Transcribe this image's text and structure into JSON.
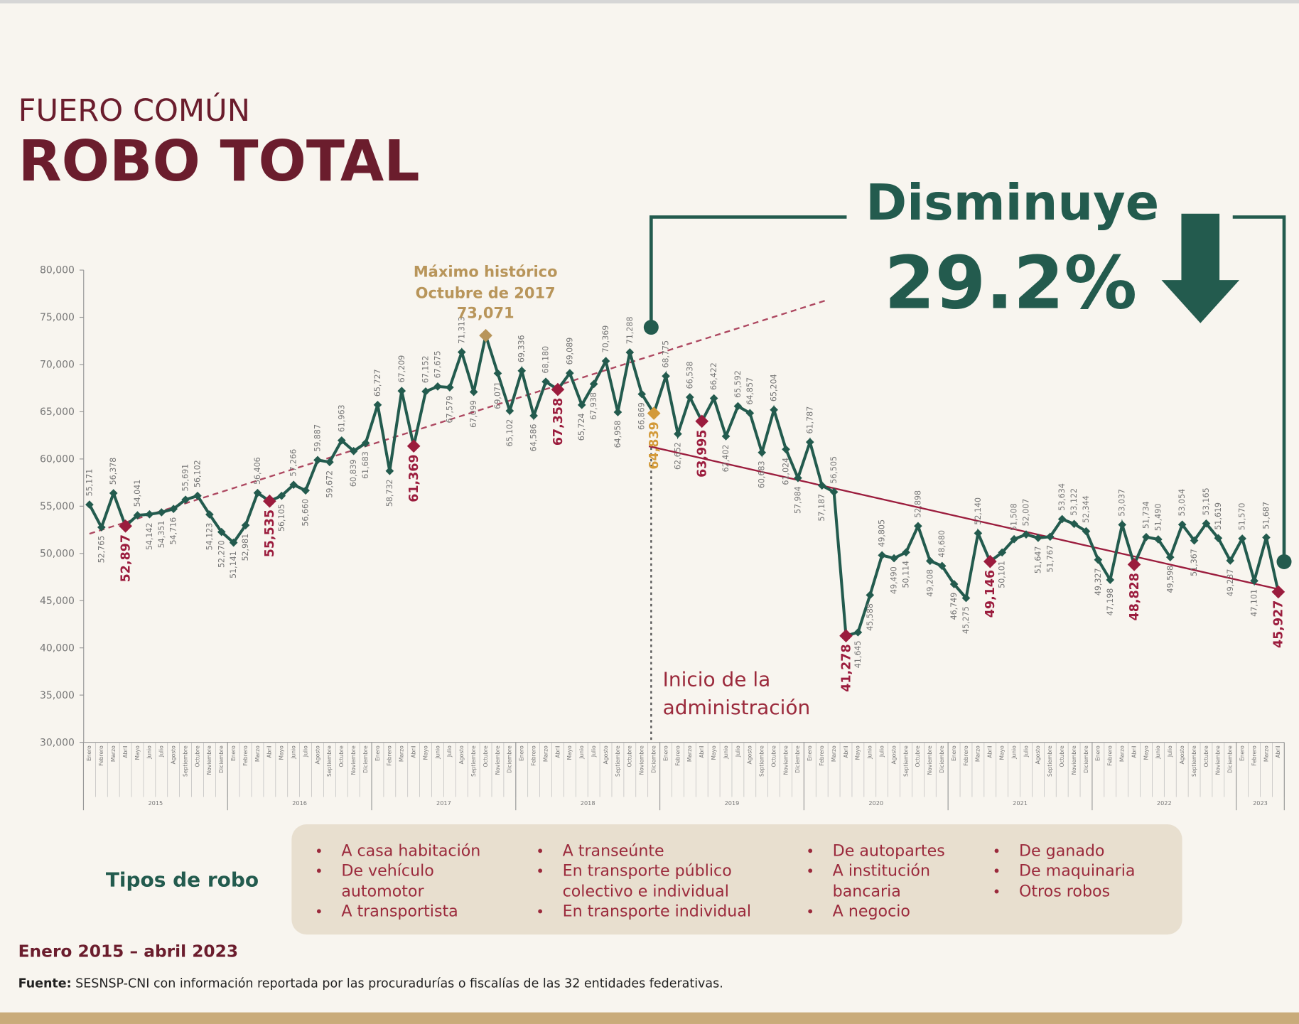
{
  "header": {
    "kicker": "FUERO COMÚN",
    "title": "ROBO TOTAL"
  },
  "callout": {
    "text": "Disminuye",
    "value": "29.2%"
  },
  "chart_data": {
    "type": "line",
    "annotation": [
      "Máximo histórico",
      "Octubre de 2017"
    ],
    "admin_note": [
      "Inicio de la",
      "administración"
    ],
    "categories": [
      "Enero",
      "Febrero",
      "Marzo",
      "Abril",
      "Mayo",
      "Junio",
      "Julio",
      "Agosto",
      "Septiembre",
      "Octubre",
      "Noviembre",
      "Diciembre",
      "Enero",
      "Febrero",
      "Marzo",
      "Abril",
      "Mayo",
      "Junio",
      "Julio",
      "Agosto",
      "Septiembre",
      "Octubre",
      "Noviembre",
      "Diciembre",
      "Enero",
      "Febrero",
      "Marzo",
      "Abril",
      "Mayo",
      "Junio",
      "Julio",
      "Agosto",
      "Septiembre",
      "Octubre",
      "Noviembre",
      "Diciembre",
      "Enero",
      "Febrero",
      "Marzo",
      "Abril",
      "Mayo",
      "Junio",
      "Julio",
      "Agosto",
      "Septiembre",
      "Octubre",
      "Noviembre",
      "Diciembre",
      "Enero",
      "Febrero",
      "Marzo",
      "Abril",
      "Mayo",
      "Junio",
      "Julio",
      "Agosto",
      "Septiembre",
      "Octubre",
      "Noviembre",
      "Diciembre",
      "Enero",
      "Febrero",
      "Marzo",
      "Abril",
      "Mayo",
      "Junio",
      "Julio",
      "Agosto",
      "Septiembre",
      "Octubre",
      "Noviembre",
      "Diciembre",
      "Enero",
      "Febrero",
      "Marzo",
      "Abril",
      "Mayo",
      "Junio",
      "Julio",
      "Agosto",
      "Septiembre",
      "Octubre",
      "Noviembre",
      "Diciembre",
      "Enero",
      "Febrero",
      "Marzo",
      "Abril",
      "Mayo",
      "Junio",
      "Julio",
      "Agosto",
      "Septiembre",
      "Octubre",
      "Noviembre",
      "Diciembre",
      "Enero",
      "Febrero",
      "Marzo",
      "Abril"
    ],
    "years": [
      "2015",
      "2016",
      "2017",
      "2018",
      "2019",
      "2020",
      "2021",
      "2022",
      "2023"
    ],
    "series": [
      {
        "color": "#235b4e",
        "values": [
          55171,
          52765,
          56378,
          52897,
          54041,
          54142,
          54351,
          54716,
          55691,
          56102,
          54123,
          52270,
          51141,
          52981,
          56406,
          55535,
          56105,
          57266,
          56660,
          59887,
          59672,
          61963,
          60839,
          61683,
          65727,
          58732,
          67209,
          61369,
          67152,
          67675,
          67579,
          71313,
          67099,
          73071,
          69071,
          65102,
          69336,
          64586,
          68180,
          67358,
          69089,
          65724,
          67938,
          70369,
          64958,
          71288,
          66869,
          64839,
          68775,
          62652,
          66538,
          63995,
          66422,
          62402,
          65592,
          64857,
          60683,
          65204,
          61024,
          57984,
          61787,
          57187,
          56505,
          41278,
          41645,
          45588,
          49805,
          49490,
          50114,
          52898,
          49208,
          48680,
          46749,
          45275,
          52140,
          49146,
          50101,
          51508,
          52007,
          51647,
          51767,
          53634,
          53122,
          52344,
          49327,
          47198,
          53037,
          48828,
          51734,
          51490,
          49598,
          53054,
          51367,
          53165,
          51619,
          49237,
          51570,
          47101,
          51687,
          45927
        ],
        "value_labels": [
          "55,171",
          "52,765",
          "56,378",
          "52,897",
          "54,041",
          "54,142",
          "54,351",
          "54,716",
          "55,691",
          "56,102",
          "54,123",
          "52,270",
          "51,141",
          "52,981",
          "56,406",
          "55,535",
          "56,105",
          "57,266",
          "56,660",
          "59,887",
          "59,672",
          "61,963",
          "60,839",
          "61,683",
          "65,727",
          "58,732",
          "67,209",
          "61,369",
          "67,152",
          "67,675",
          "67,579",
          "71,313",
          "67,099",
          "73,071",
          "69,071",
          "65,102",
          "69,336",
          "64,586",
          "68,180",
          "67,358",
          "69,089",
          "65,724",
          "67,938",
          "70,369",
          "64,958",
          "71,288",
          "66,869",
          "64,839",
          "68,775",
          "62,652",
          "66,538",
          "63,995",
          "66,422",
          "62,402",
          "65,592",
          "64,857",
          "60,683",
          "65,204",
          "61,024",
          "57,984",
          "61,787",
          "57,187",
          "56,505",
          "41,278",
          "41,645",
          "45,588",
          "49,805",
          "49,490",
          "50,114",
          "52,898",
          "49,208",
          "48,680",
          "46,749",
          "45,275",
          "52,140",
          "49,146",
          "50,101",
          "51,508",
          "52,007",
          "51,647",
          "51,767",
          "53,634",
          "53,122",
          "52,344",
          "49,327",
          "47,198",
          "53,037",
          "48,828",
          "51,734",
          "51,490",
          "49,598",
          "53,054",
          "51,367",
          "53,165",
          "51,619",
          "49,237",
          "51,570",
          "47,101",
          "51,687",
          "45,927"
        ],
        "point_colors": [
          "#235b4e",
          "#235b4e",
          "#235b4e",
          "#9b1c3d",
          "#235b4e",
          "#235b4e",
          "#235b4e",
          "#235b4e",
          "#235b4e",
          "#235b4e",
          "#235b4e",
          "#235b4e",
          "#235b4e",
          "#235b4e",
          "#235b4e",
          "#9b1c3d",
          "#235b4e",
          "#235b4e",
          "#235b4e",
          "#235b4e",
          "#235b4e",
          "#235b4e",
          "#235b4e",
          "#235b4e",
          "#235b4e",
          "#235b4e",
          "#235b4e",
          "#9b1c3d",
          "#235b4e",
          "#235b4e",
          "#235b4e",
          "#235b4e",
          "#235b4e",
          "#b8955a",
          "#235b4e",
          "#235b4e",
          "#235b4e",
          "#235b4e",
          "#235b4e",
          "#9b1c3d",
          "#235b4e",
          "#235b4e",
          "#235b4e",
          "#235b4e",
          "#235b4e",
          "#235b4e",
          "#235b4e",
          "#d39a3a",
          "#235b4e",
          "#235b4e",
          "#235b4e",
          "#9b1c3d",
          "#235b4e",
          "#235b4e",
          "#235b4e",
          "#235b4e",
          "#235b4e",
          "#235b4e",
          "#235b4e",
          "#235b4e",
          "#235b4e",
          "#235b4e",
          "#235b4e",
          "#9b1c3d",
          "#235b4e",
          "#235b4e",
          "#235b4e",
          "#235b4e",
          "#235b4e",
          "#235b4e",
          "#235b4e",
          "#235b4e",
          "#235b4e",
          "#235b4e",
          "#235b4e",
          "#9b1c3d",
          "#235b4e",
          "#235b4e",
          "#235b4e",
          "#235b4e",
          "#235b4e",
          "#235b4e",
          "#235b4e",
          "#235b4e",
          "#235b4e",
          "#235b4e",
          "#235b4e",
          "#9b1c3d",
          "#235b4e",
          "#235b4e",
          "#235b4e",
          "#235b4e",
          "#235b4e",
          "#235b4e",
          "#235b4e",
          "#235b4e",
          "#235b4e",
          "#235b4e",
          "#235b4e",
          "#9b1c3d"
        ]
      }
    ],
    "ylim": [
      30000,
      80000
    ],
    "yticks": [
      {
        "value": 30000,
        "label": "30,000"
      },
      {
        "value": 35000,
        "label": "35,000"
      },
      {
        "value": 40000,
        "label": "40,000"
      },
      {
        "value": 45000,
        "label": "45,000"
      },
      {
        "value": 50000,
        "label": "50,000"
      },
      {
        "value": 55000,
        "label": "55,000"
      },
      {
        "value": 60000,
        "label": "60,000"
      },
      {
        "value": 65000,
        "label": "65,000"
      },
      {
        "value": 70000,
        "label": "70,000"
      },
      {
        "value": 75000,
        "label": "75,000"
      },
      {
        "value": 80000,
        "label": "80,000"
      }
    ]
  },
  "types": {
    "title": "Tipos de robo",
    "columns": [
      [
        [
          "A casa habitación"
        ],
        [
          "De vehículo",
          "automotor"
        ],
        [
          "A transportista"
        ]
      ],
      [
        [
          "A transeúnte"
        ],
        [
          "En transporte público",
          "colectivo e individual"
        ],
        [
          "En transporte individual"
        ]
      ],
      [
        [
          "De autopartes"
        ],
        [
          "A institución",
          "bancaria"
        ],
        [
          "A negocio"
        ]
      ],
      [
        [
          "De ganado"
        ],
        [
          "De maquinaria"
        ],
        [
          "Otros robos"
        ]
      ]
    ]
  },
  "footer": {
    "period": "Enero 2015 – abril 2023",
    "source_label": "Fuente:",
    "source": " SESNSP-CNI con información reportada por las procuradurías o fiscalías de las 32 entidades federativas."
  }
}
